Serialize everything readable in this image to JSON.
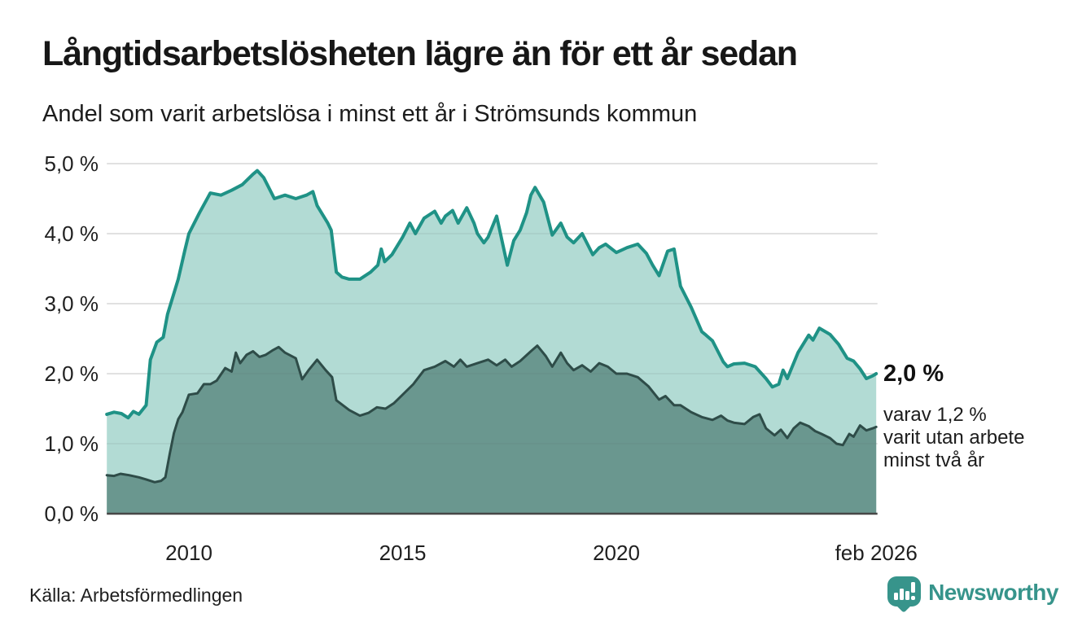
{
  "header": {
    "title": "Långtidsarbetslösheten lägre än för ett år sedan",
    "subtitle": "Andel som varit arbetslösa i minst ett år i Strömsunds kommun"
  },
  "annotation": {
    "value": "2,0 %",
    "lines": [
      "varav 1,2 %",
      "varit utan arbete",
      "minst två år"
    ]
  },
  "footer": {
    "source": "Källa: Arbetsförmedlingen",
    "brand": "Newsworthy"
  },
  "colors": {
    "teal_line": "#1f9286",
    "teal_fill": "#b2dbd4",
    "dark_line": "#2e4c48",
    "dark_fill": "#6f9a93",
    "grid": "#e4e4e4",
    "baseline": "#474747",
    "brand_teal": "#37948b",
    "text": "#1f1f1f"
  },
  "chart_data": {
    "type": "area",
    "title": "Långtidsarbetslösheten lägre än för ett år sedan",
    "subtitle": "Andel som varit arbetslösa i minst ett år i Strömsunds kommun",
    "xlabel": "",
    "ylabel": "",
    "xlim": [
      2008.08,
      2026.09
    ],
    "ylim": [
      0,
      5
    ],
    "grid": true,
    "legend": false,
    "y_ticks": [
      {
        "value": 0,
        "label": "0,0 %"
      },
      {
        "value": 1,
        "label": "1,0 %"
      },
      {
        "value": 2,
        "label": "2,0 %"
      },
      {
        "value": 3,
        "label": "3,0 %"
      },
      {
        "value": 4,
        "label": "4,0 %"
      },
      {
        "value": 5,
        "label": "5,0 %"
      }
    ],
    "x_ticks": [
      {
        "value": 2010,
        "label": "2010"
      },
      {
        "value": 2015,
        "label": "2015"
      },
      {
        "value": 2020,
        "label": "2020"
      },
      {
        "value": 2026.08,
        "label": "feb 2026"
      }
    ],
    "end_labels": {
      "minst_ett_ar": "2,0 %",
      "minst_tva_ar": "1,2 %"
    },
    "series": [
      {
        "name": "minst ett år",
        "line_color": "#1f9286",
        "fill_color": "rgba(167,214,206,0.88)",
        "line_width": 4,
        "points": [
          [
            2008.08,
            1.42
          ],
          [
            2008.25,
            1.45
          ],
          [
            2008.42,
            1.43
          ],
          [
            2008.58,
            1.37
          ],
          [
            2008.7,
            1.46
          ],
          [
            2008.83,
            1.42
          ],
          [
            2009.0,
            1.55
          ],
          [
            2009.1,
            2.2
          ],
          [
            2009.25,
            2.45
          ],
          [
            2009.4,
            2.52
          ],
          [
            2009.5,
            2.85
          ],
          [
            2009.75,
            3.35
          ],
          [
            2009.9,
            3.75
          ],
          [
            2010.0,
            4.0
          ],
          [
            2010.25,
            4.3
          ],
          [
            2010.5,
            4.58
          ],
          [
            2010.75,
            4.55
          ],
          [
            2011.0,
            4.62
          ],
          [
            2011.25,
            4.7
          ],
          [
            2011.5,
            4.85
          ],
          [
            2011.6,
            4.9
          ],
          [
            2011.75,
            4.8
          ],
          [
            2012.0,
            4.5
          ],
          [
            2012.25,
            4.55
          ],
          [
            2012.5,
            4.5
          ],
          [
            2012.75,
            4.55
          ],
          [
            2012.9,
            4.6
          ],
          [
            2013.0,
            4.4
          ],
          [
            2013.25,
            4.15
          ],
          [
            2013.33,
            4.05
          ],
          [
            2013.45,
            3.45
          ],
          [
            2013.58,
            3.38
          ],
          [
            2013.75,
            3.35
          ],
          [
            2014.0,
            3.35
          ],
          [
            2014.25,
            3.45
          ],
          [
            2014.42,
            3.55
          ],
          [
            2014.5,
            3.78
          ],
          [
            2014.58,
            3.6
          ],
          [
            2014.75,
            3.7
          ],
          [
            2015.0,
            3.95
          ],
          [
            2015.17,
            4.15
          ],
          [
            2015.3,
            4.0
          ],
          [
            2015.5,
            4.22
          ],
          [
            2015.75,
            4.32
          ],
          [
            2015.9,
            4.15
          ],
          [
            2016.0,
            4.25
          ],
          [
            2016.17,
            4.33
          ],
          [
            2016.3,
            4.15
          ],
          [
            2016.5,
            4.37
          ],
          [
            2016.67,
            4.15
          ],
          [
            2016.75,
            4.0
          ],
          [
            2016.9,
            3.87
          ],
          [
            2017.0,
            3.95
          ],
          [
            2017.2,
            4.25
          ],
          [
            2017.45,
            3.55
          ],
          [
            2017.6,
            3.9
          ],
          [
            2017.75,
            4.05
          ],
          [
            2017.9,
            4.3
          ],
          [
            2018.0,
            4.55
          ],
          [
            2018.1,
            4.66
          ],
          [
            2018.3,
            4.45
          ],
          [
            2018.5,
            3.98
          ],
          [
            2018.7,
            4.15
          ],
          [
            2018.85,
            3.95
          ],
          [
            2019.0,
            3.87
          ],
          [
            2019.2,
            4.0
          ],
          [
            2019.45,
            3.7
          ],
          [
            2019.6,
            3.8
          ],
          [
            2019.75,
            3.85
          ],
          [
            2020.0,
            3.73
          ],
          [
            2020.25,
            3.8
          ],
          [
            2020.5,
            3.85
          ],
          [
            2020.7,
            3.72
          ],
          [
            2020.85,
            3.55
          ],
          [
            2021.0,
            3.4
          ],
          [
            2021.2,
            3.75
          ],
          [
            2021.35,
            3.78
          ],
          [
            2021.5,
            3.25
          ],
          [
            2021.75,
            2.95
          ],
          [
            2022.0,
            2.6
          ],
          [
            2022.1,
            2.55
          ],
          [
            2022.25,
            2.47
          ],
          [
            2022.5,
            2.17
          ],
          [
            2022.6,
            2.1
          ],
          [
            2022.75,
            2.14
          ],
          [
            2023.0,
            2.15
          ],
          [
            2023.25,
            2.1
          ],
          [
            2023.5,
            1.93
          ],
          [
            2023.65,
            1.81
          ],
          [
            2023.8,
            1.85
          ],
          [
            2023.9,
            2.05
          ],
          [
            2024.0,
            1.93
          ],
          [
            2024.25,
            2.3
          ],
          [
            2024.5,
            2.55
          ],
          [
            2024.6,
            2.48
          ],
          [
            2024.75,
            2.65
          ],
          [
            2025.0,
            2.56
          ],
          [
            2025.2,
            2.42
          ],
          [
            2025.4,
            2.22
          ],
          [
            2025.55,
            2.18
          ],
          [
            2025.7,
            2.07
          ],
          [
            2025.85,
            1.93
          ],
          [
            2026.0,
            1.97
          ],
          [
            2026.08,
            2.0
          ]
        ]
      },
      {
        "name": "minst två år",
        "line_color": "#2e4c48",
        "fill_color": "rgba(100,145,137,0.92)",
        "line_width": 3,
        "points": [
          [
            2008.08,
            0.55
          ],
          [
            2008.25,
            0.54
          ],
          [
            2008.4,
            0.57
          ],
          [
            2008.6,
            0.55
          ],
          [
            2008.83,
            0.52
          ],
          [
            2009.0,
            0.49
          ],
          [
            2009.2,
            0.45
          ],
          [
            2009.35,
            0.47
          ],
          [
            2009.45,
            0.52
          ],
          [
            2009.55,
            0.85
          ],
          [
            2009.65,
            1.15
          ],
          [
            2009.75,
            1.35
          ],
          [
            2009.85,
            1.45
          ],
          [
            2010.0,
            1.7
          ],
          [
            2010.2,
            1.72
          ],
          [
            2010.35,
            1.85
          ],
          [
            2010.5,
            1.85
          ],
          [
            2010.65,
            1.9
          ],
          [
            2010.85,
            2.08
          ],
          [
            2011.0,
            2.03
          ],
          [
            2011.1,
            2.3
          ],
          [
            2011.2,
            2.15
          ],
          [
            2011.35,
            2.27
          ],
          [
            2011.5,
            2.32
          ],
          [
            2011.65,
            2.24
          ],
          [
            2011.8,
            2.27
          ],
          [
            2011.95,
            2.33
          ],
          [
            2012.1,
            2.38
          ],
          [
            2012.25,
            2.3
          ],
          [
            2012.5,
            2.22
          ],
          [
            2012.65,
            1.92
          ],
          [
            2012.8,
            2.05
          ],
          [
            2013.0,
            2.2
          ],
          [
            2013.2,
            2.05
          ],
          [
            2013.35,
            1.95
          ],
          [
            2013.45,
            1.62
          ],
          [
            2013.6,
            1.55
          ],
          [
            2013.75,
            1.48
          ],
          [
            2014.0,
            1.4
          ],
          [
            2014.2,
            1.44
          ],
          [
            2014.4,
            1.52
          ],
          [
            2014.6,
            1.5
          ],
          [
            2014.8,
            1.58
          ],
          [
            2015.0,
            1.7
          ],
          [
            2015.25,
            1.85
          ],
          [
            2015.5,
            2.05
          ],
          [
            2015.75,
            2.1
          ],
          [
            2016.0,
            2.18
          ],
          [
            2016.2,
            2.1
          ],
          [
            2016.35,
            2.2
          ],
          [
            2016.5,
            2.1
          ],
          [
            2016.75,
            2.15
          ],
          [
            2017.0,
            2.2
          ],
          [
            2017.2,
            2.12
          ],
          [
            2017.4,
            2.2
          ],
          [
            2017.55,
            2.1
          ],
          [
            2017.75,
            2.18
          ],
          [
            2018.0,
            2.32
          ],
          [
            2018.15,
            2.4
          ],
          [
            2018.35,
            2.25
          ],
          [
            2018.5,
            2.1
          ],
          [
            2018.7,
            2.3
          ],
          [
            2018.85,
            2.15
          ],
          [
            2019.0,
            2.05
          ],
          [
            2019.2,
            2.12
          ],
          [
            2019.4,
            2.03
          ],
          [
            2019.6,
            2.15
          ],
          [
            2019.8,
            2.1
          ],
          [
            2020.0,
            2.0
          ],
          [
            2020.25,
            2.0
          ],
          [
            2020.5,
            1.95
          ],
          [
            2020.75,
            1.82
          ],
          [
            2021.0,
            1.63
          ],
          [
            2021.15,
            1.68
          ],
          [
            2021.35,
            1.55
          ],
          [
            2021.5,
            1.55
          ],
          [
            2021.75,
            1.45
          ],
          [
            2022.0,
            1.38
          ],
          [
            2022.25,
            1.34
          ],
          [
            2022.45,
            1.4
          ],
          [
            2022.6,
            1.33
          ],
          [
            2022.75,
            1.3
          ],
          [
            2023.0,
            1.28
          ],
          [
            2023.2,
            1.38
          ],
          [
            2023.35,
            1.42
          ],
          [
            2023.5,
            1.22
          ],
          [
            2023.7,
            1.12
          ],
          [
            2023.85,
            1.2
          ],
          [
            2024.0,
            1.08
          ],
          [
            2024.15,
            1.22
          ],
          [
            2024.3,
            1.3
          ],
          [
            2024.5,
            1.25
          ],
          [
            2024.65,
            1.18
          ],
          [
            2024.8,
            1.14
          ],
          [
            2025.0,
            1.08
          ],
          [
            2025.15,
            1.0
          ],
          [
            2025.3,
            0.98
          ],
          [
            2025.45,
            1.14
          ],
          [
            2025.55,
            1.1
          ],
          [
            2025.7,
            1.26
          ],
          [
            2025.85,
            1.19
          ],
          [
            2026.0,
            1.22
          ],
          [
            2026.08,
            1.24
          ]
        ]
      }
    ]
  }
}
